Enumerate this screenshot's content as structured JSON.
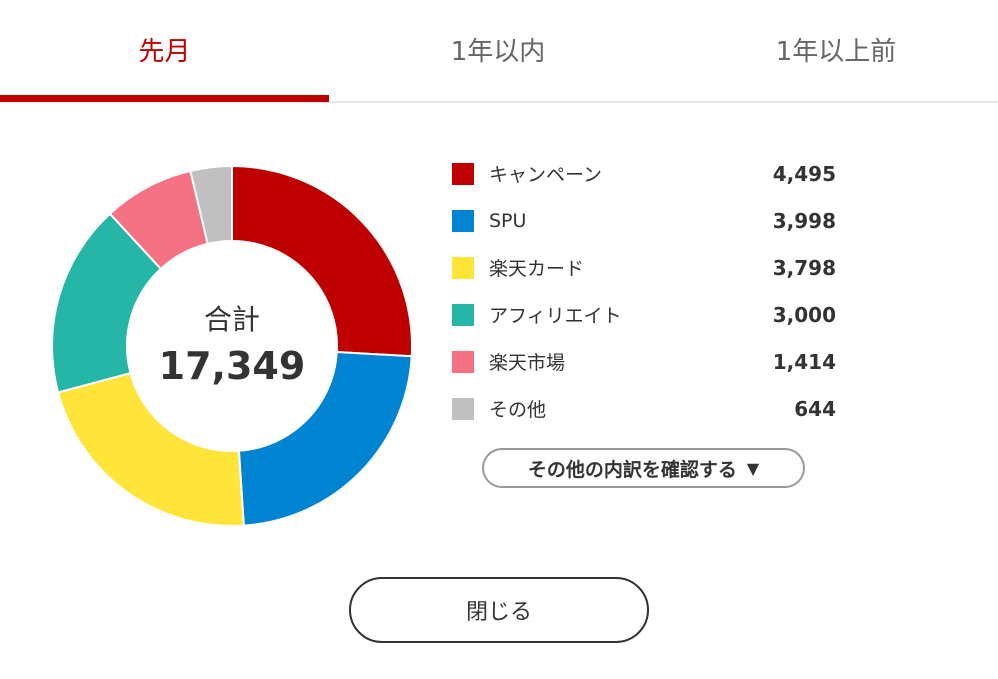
{
  "tabs": [
    {
      "label": "先月",
      "active": true
    },
    {
      "label": "1年以内",
      "active": false
    },
    {
      "label": "1年以上前",
      "active": false
    }
  ],
  "colors": {
    "accent": "#bf0000"
  },
  "summary": {
    "total_label": "合計",
    "total_value": "17,349"
  },
  "chart_data": {
    "type": "pie",
    "categories": [
      "キャンペーン",
      "SPU",
      "楽天カード",
      "アフィリエイト",
      "楽天市場",
      "その他"
    ],
    "values": [
      4495,
      3998,
      3798,
      3000,
      1414,
      644
    ],
    "colors": [
      "#bf0000",
      "#0083d1",
      "#ffe43a",
      "#26b6a7",
      "#f47284",
      "#c0c0c0"
    ],
    "title": "",
    "style": "donut"
  },
  "legend": {
    "items": [
      {
        "label": "キャンペーン",
        "value": "4,495",
        "color": "#bf0000"
      },
      {
        "label": "SPU",
        "value": "3,998",
        "color": "#0083d1"
      },
      {
        "label": "楽天カード",
        "value": "3,798",
        "color": "#ffe43a"
      },
      {
        "label": "アフィリエイト",
        "value": "3,000",
        "color": "#26b6a7"
      },
      {
        "label": "楽天市場",
        "value": "1,414",
        "color": "#f47284"
      },
      {
        "label": "その他",
        "value": "644",
        "color": "#c0c0c0"
      }
    ]
  },
  "buttons": {
    "details_label": "その他の内訳を確認する",
    "details_arrow": "▼",
    "close_label": "閉じる"
  }
}
